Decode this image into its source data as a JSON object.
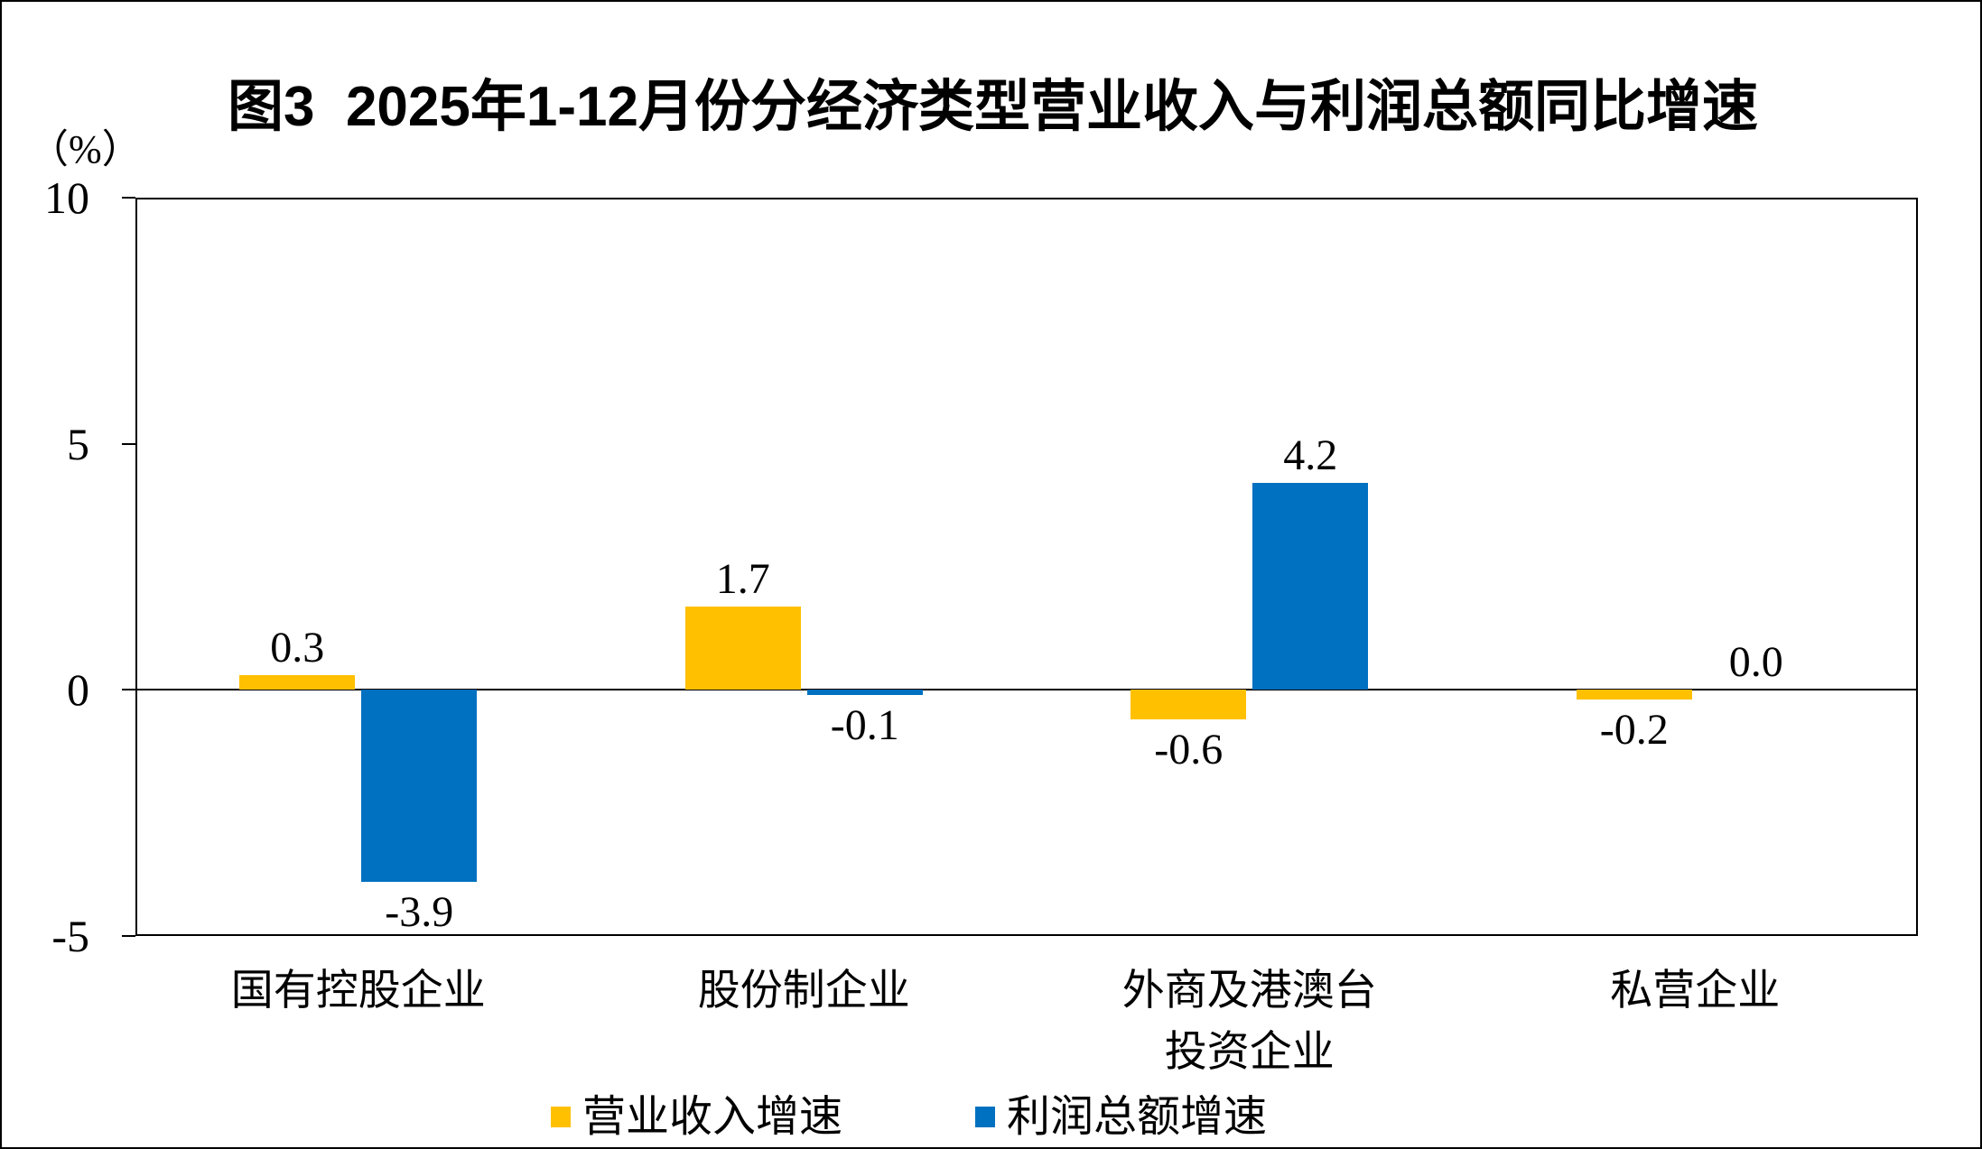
{
  "chart_data": {
    "type": "bar",
    "title": "图3  2025年1-12月份分经济类型营业收入与利润总额同比增速",
    "unit_label": "（%）",
    "categories": [
      "国有控股企业",
      "股份制企业",
      "外商及港澳台\n投资企业",
      "私营企业"
    ],
    "series": [
      {
        "name": "营业收入增速",
        "color": "#FFC000",
        "values": [
          0.3,
          1.7,
          -0.6,
          -0.2
        ]
      },
      {
        "name": "利润总额增速",
        "color": "#0070C0",
        "values": [
          -3.9,
          -0.1,
          4.2,
          0.0
        ]
      }
    ],
    "y_axis": {
      "min": -5,
      "max": 10,
      "tick_interval": 5,
      "ticks": [
        10,
        5,
        0,
        -5
      ]
    },
    "legend_position": "bottom",
    "grid": "none",
    "data_label_decimals": 1
  }
}
